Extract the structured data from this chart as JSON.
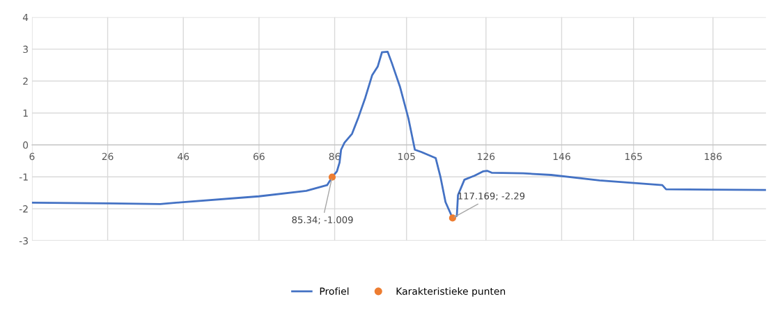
{
  "chart_data": {
    "type": "line",
    "series": [
      {
        "name": "Profiel",
        "color": "#4472c4",
        "x": [
          6,
          26,
          39.9,
          46,
          66,
          78.5,
          84,
          85.34,
          86.6,
          87.3,
          87.7,
          88.6,
          90.6,
          92.3,
          94.1,
          95.9,
          97.4,
          98.5,
          100,
          101.1,
          103.3,
          105.5,
          107.2,
          108.9,
          112.7,
          114,
          115.3,
          117.169,
          118.3,
          118.6,
          120.3,
          123,
          125.2,
          126.3,
          127.5,
          135.8,
          143.2,
          156,
          172.6,
          173.6,
          200
        ],
        "values": [
          -1.81,
          -1.83,
          -1.85,
          -1.79,
          -1.61,
          -1.44,
          -1.26,
          -1.009,
          -0.83,
          -0.55,
          -0.15,
          0.07,
          0.35,
          0.87,
          1.48,
          2.18,
          2.46,
          2.9,
          2.92,
          2.57,
          1.81,
          0.83,
          -0.15,
          -0.22,
          -0.41,
          -1.02,
          -1.79,
          -2.29,
          -2.22,
          -1.57,
          -1.09,
          -0.96,
          -0.83,
          -0.81,
          -0.87,
          -0.89,
          -0.94,
          -1.11,
          -1.26,
          -1.39,
          -1.41
        ]
      },
      {
        "name": "Karakteristieke punten",
        "type": "scatter",
        "color": "#ed7d31",
        "marker": "circle",
        "x": [
          85.34,
          117.169
        ],
        "values": [
          -1.009,
          -2.29
        ]
      }
    ],
    "annotations": [
      {
        "text": "85.34; -1.009",
        "x": 85.34,
        "y": -1.009
      },
      {
        "text": "117.169; -2.29",
        "x": 117.169,
        "y": -2.29
      }
    ],
    "xlim": [
      6,
      200
    ],
    "xticks": [
      6,
      26,
      46,
      66,
      86,
      105,
      126,
      146,
      165,
      186
    ],
    "ylim": [
      -3,
      4
    ],
    "yticks": [
      -3,
      -2,
      -1,
      0,
      1,
      2,
      3,
      4
    ],
    "grid": true,
    "legend": "bottom"
  }
}
